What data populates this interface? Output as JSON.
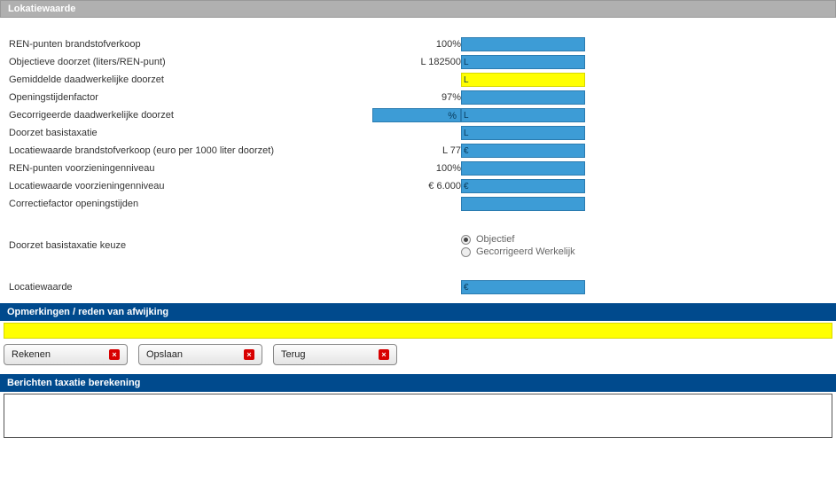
{
  "sections": {
    "lokatiewaarde": "Lokatiewaarde",
    "opmerkingen": "Opmerkingen / reden van afwijking",
    "berichten": "Berichten taxatie berekening"
  },
  "rows": [
    {
      "label": "REN-punten brandstofverkoop",
      "value": "100%",
      "field_text": "",
      "field_style": "blue"
    },
    {
      "label": "Objectieve doorzet (liters/REN-punt)",
      "value": "L 182500",
      "field_text": "L",
      "field_style": "blue"
    },
    {
      "label": "Gemiddelde daadwerkelijke doorzet",
      "value": "",
      "field_text": "L",
      "field_style": "yellow"
    },
    {
      "label": "Openingstijdenfactor",
      "value": "97%",
      "field_text": "",
      "field_style": "blue"
    },
    {
      "label": "Gecorrigeerde daadwerkelijke doorzet",
      "value": "%",
      "value_bg": true,
      "field_text": "L",
      "field_style": "blue"
    },
    {
      "label": "Doorzet basistaxatie",
      "value": "",
      "field_text": "L",
      "field_style": "blue"
    },
    {
      "label": "Locatiewaarde brandstofverkoop (euro per 1000 liter doorzet)",
      "value": "L 77",
      "field_text": "€",
      "field_style": "blue"
    },
    {
      "label": "REN-punten voorzieningenniveau",
      "value": "100%",
      "field_text": "",
      "field_style": "blue"
    },
    {
      "label": "Locatiewaarde voorzieningenniveau",
      "value": "€ 6.000",
      "field_text": "€",
      "field_style": "blue"
    },
    {
      "label": "Correctiefactor openingstijden",
      "value": "",
      "field_text": "",
      "field_style": "blue"
    }
  ],
  "choice": {
    "label": "Doorzet basistaxatie keuze",
    "options": [
      {
        "text": "Objectief",
        "checked": true
      },
      {
        "text": "Gecorrigeerd Werkelijk",
        "checked": false
      }
    ]
  },
  "final_row": {
    "label": "Locatiewaarde",
    "field_text": "€",
    "field_style": "blue"
  },
  "buttons": {
    "rekenen": "Rekenen",
    "opslaan": "Opslaan",
    "terug": "Terug"
  }
}
